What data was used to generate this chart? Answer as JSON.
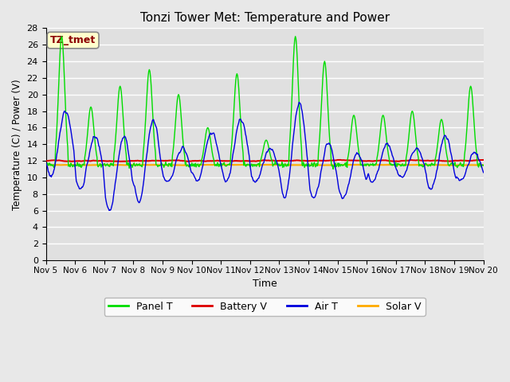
{
  "title": "Tonzi Tower Met: Temperature and Power",
  "xlabel": "Time",
  "ylabel": "Temperature (C) / Power (V)",
  "ylim": [
    0,
    28
  ],
  "yticks": [
    0,
    2,
    4,
    6,
    8,
    10,
    12,
    14,
    16,
    18,
    20,
    22,
    24,
    26,
    28
  ],
  "xtick_labels": [
    "Nov 5",
    "Nov 6",
    "Nov 7",
    "Nov 8",
    "Nov 9",
    "Nov 10",
    "Nov 11",
    "Nov 12",
    "Nov 13",
    "Nov 14",
    "Nov 15",
    "Nov 16",
    "Nov 17",
    "Nov 18",
    "Nov 19",
    "Nov 20"
  ],
  "bg_color": "#e8e8e8",
  "plot_bg_color": "#e0e0e0",
  "grid_color": "#ffffff",
  "annotation_text": "TZ_tmet",
  "annotation_color": "#8b0000",
  "annotation_bg": "#ffffcc",
  "annotation_border": "#aaaaaa",
  "panel_color": "#00dd00",
  "battery_color": "#dd0000",
  "air_color": "#0000dd",
  "solar_color": "#ffaa00",
  "panel_lw": 1.0,
  "battery_lw": 1.5,
  "air_lw": 1.0,
  "solar_lw": 1.5,
  "panel_peaks": [
    27,
    18.5,
    21,
    23,
    20,
    16,
    22.5,
    14.5,
    27,
    24,
    17.5,
    17.5,
    18,
    17,
    21
  ],
  "air_peaks": [
    18,
    15,
    15,
    17,
    13.5,
    15.5,
    17,
    13.5,
    19,
    14,
    13,
    14,
    13.5,
    15,
    13
  ],
  "air_valleys": [
    10,
    8.5,
    6,
    7,
    9.5,
    9.5,
    9.5,
    9.5,
    7.5,
    7.5,
    7.5,
    9.5,
    10,
    8.5,
    9.5
  ],
  "battery_mean": 12.0,
  "solar_mean": 11.5
}
